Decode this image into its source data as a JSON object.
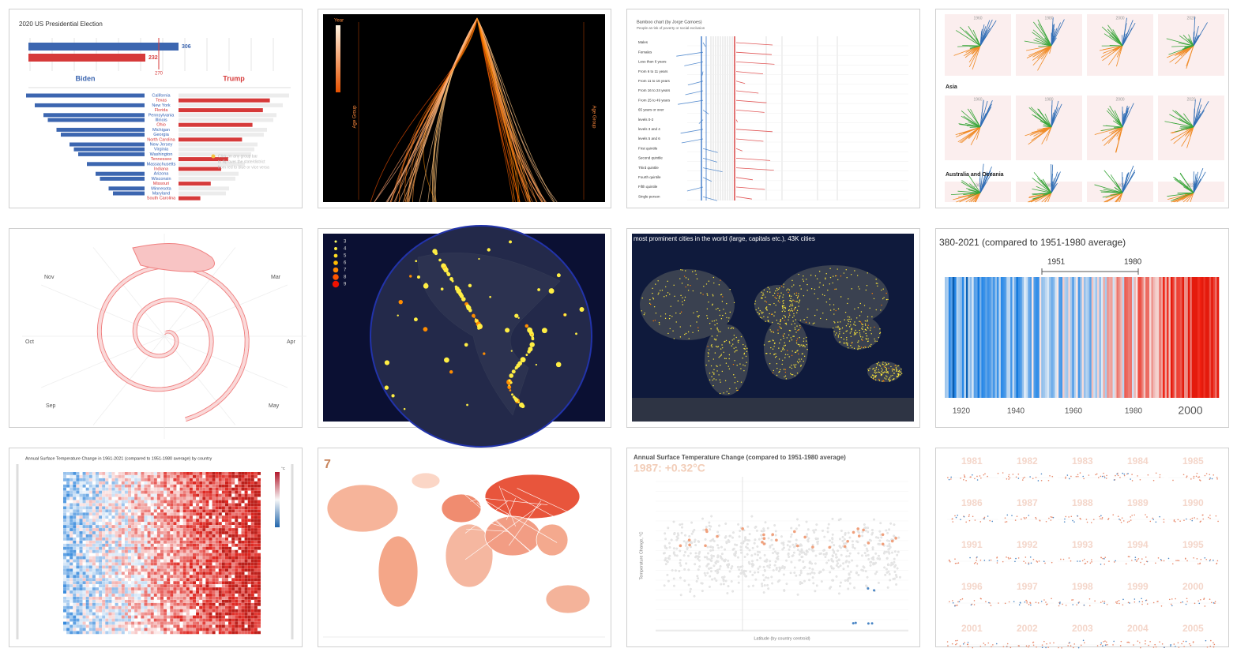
{
  "cards": [
    {
      "title": "2020 US Presidential Election",
      "biden_ev": "306",
      "trump_ev": "232",
      "threshold": "270",
      "left": "Biden",
      "right": "Trump",
      "states": [
        "California",
        "Texas",
        "New York",
        "Florida",
        "Pennsylvania",
        "Illinois",
        "Ohio",
        "Michigan",
        "Georgia",
        "North Carolina",
        "New Jersey",
        "Virginia",
        "Washington",
        "Tennessee",
        "Massachusetts",
        "Indiana",
        "Arizona",
        "Wisconsin",
        "Missouri",
        "Minnesota",
        "Maryland",
        "South Carolina"
      ],
      "state_colors": [
        "#2f5fb3",
        "#d62f2f",
        "#2f5fb3",
        "#d62f2f",
        "#2f5fb3",
        "#2f5fb3",
        "#d62f2f",
        "#2f5fb3",
        "#2f5fb3",
        "#d62f2f",
        "#2f5fb3",
        "#2f5fb3",
        "#2f5fb3",
        "#d62f2f",
        "#2f5fb3",
        "#d62f2f",
        "#2f5fb3",
        "#2f5fb3",
        "#d62f2f",
        "#2f5fb3",
        "#2f5fb3",
        "#d62f2f"
      ],
      "note": [
        "Click on any group bar",
        "to flip over the state/district",
        "from red to blue or vice versa"
      ]
    },
    {
      "legend_title": "Year",
      "axis_label": "Age Group"
    },
    {
      "title": "Bamboo chart (by Jorge Camoes)",
      "subtitle": "People at risk of poverty or social exclusion",
      "rows": [
        "Males",
        "Females",
        "Less than 6 years",
        "From 6 to 11 years",
        "From 11 to 16 years",
        "From 16 to 24 years",
        "From 25 to 49 years",
        "65 years or over",
        "levels 0-2",
        "levels 3 and 4",
        "levels 5 and 6",
        "First quintile",
        "Second quintile",
        "Third quintile",
        "Fourth quintile",
        "Fifth quintile",
        "Single person"
      ]
    },
    {
      "years": [
        "1960",
        "1980",
        "2000",
        "2020"
      ],
      "groups": [
        "Asia",
        "Australia and Oceania"
      ]
    },
    {
      "months": [
        "Nov",
        "Mar",
        "Oct",
        "Apr",
        "Sep",
        "May"
      ]
    },
    {
      "legend": [
        3,
        4,
        5,
        6,
        7,
        8,
        9
      ],
      "legend_colors": [
        "#ffff66",
        "#ffee44",
        "#ffdd22",
        "#ffbb00",
        "#ff8800",
        "#ff5500",
        "#ee1100"
      ]
    },
    {
      "title": "most prominent cities in the world (large, capitals etc.), 43K cities"
    },
    {
      "title": "380-2021 (compared to 1951-1980 average)",
      "bracket": [
        "1951",
        "1980"
      ],
      "axis": [
        "1920",
        "1940",
        "1960",
        "1980",
        "2000"
      ]
    },
    {
      "title": "Annual Surface Temperature Change in 1961-2021 (compared to 1951-1980 average) by country",
      "unit": "°C"
    },
    {
      "label": "7"
    },
    {
      "title": "Annual Surface Temperature Change (compared to 1951-1980 average)",
      "subtitle": "1987: +0.32°C",
      "y_label": "Temperature Change, °C",
      "x_label": "Latitude (by country centroid)"
    },
    {
      "years": [
        "1981",
        "1982",
        "1983",
        "1984",
        "1985",
        "1986",
        "1987",
        "1988",
        "1989",
        "1990",
        "1991",
        "1992",
        "1993",
        "1994",
        "1995",
        "1996",
        "1997",
        "1998",
        "1999",
        "2000",
        "2001",
        "2002",
        "2003",
        "2004",
        "2005"
      ]
    }
  ]
}
